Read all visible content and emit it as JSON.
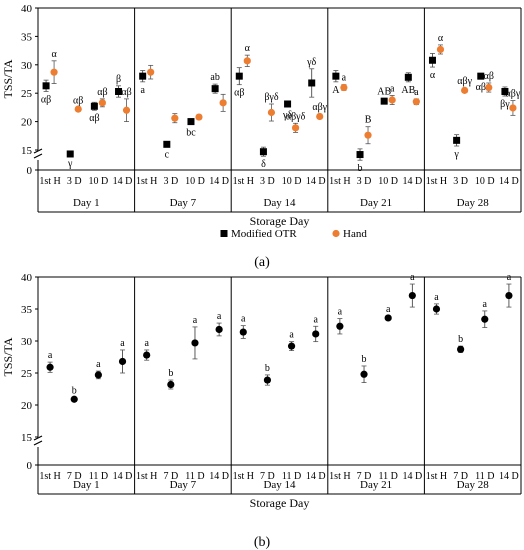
{
  "figure": {
    "panels": [
      "(a)",
      "(b)"
    ]
  },
  "chart_data": [
    {
      "type": "scatter",
      "panel_label": "(a)",
      "ylabel": "TSS/TA",
      "xlabel": "Storage Day",
      "ylim": [
        0,
        40
      ],
      "yticks": [
        "0",
        "15",
        "20",
        "25",
        "30",
        "35",
        "40"
      ],
      "axis_break": true,
      "groups": [
        "Day 1",
        "Day 7",
        "Day 14",
        "Day 21",
        "Day 28"
      ],
      "x_labels": [
        "1st H",
        "3 D",
        "10 D",
        "14 D"
      ],
      "legend": [
        "Modified OTR",
        "Hand"
      ],
      "colors": {
        "Modified OTR": "#000000",
        "Hand": "#ed7d31"
      },
      "series": [
        {
          "name": "Modified OTR",
          "marker": "square",
          "values": [
            [
              26.3,
              14.3,
              22.7,
              25.3
            ],
            [
              28.0,
              16.0,
              20.0,
              25.8
            ],
            [
              28.0,
              14.7,
              23.1,
              26.8
            ],
            [
              28.0,
              14.2,
              23.6,
              27.8
            ],
            [
              30.8,
              16.7,
              28.0,
              25.3
            ]
          ],
          "errors": [
            [
              1.0,
              0.3,
              0.7,
              1.0
            ],
            [
              1.0,
              0.4,
              0.5,
              0.8
            ],
            [
              1.5,
              0.8,
              0.5,
              2.5
            ],
            [
              1.0,
              1.0,
              0.5,
              0.8
            ],
            [
              1.2,
              1.0,
              0.5,
              0.8
            ]
          ],
          "annotations": [
            [
              "αβ",
              "γ",
              "αβ",
              "β"
            ],
            [
              "a",
              "c",
              "bc",
              "ab"
            ],
            [
              "αβ",
              "δ",
              "γδ",
              "γδ"
            ],
            [
              "A",
              "b",
              "AB",
              "AB"
            ],
            [
              "α",
              "γ",
              "αβ",
              "βγ"
            ]
          ]
        },
        {
          "name": "Hand",
          "marker": "circle",
          "values": [
            [
              28.7,
              22.2,
              23.3,
              22.0
            ],
            [
              28.7,
              20.6,
              20.8,
              23.3
            ],
            [
              30.7,
              21.6,
              18.9,
              20.9
            ],
            [
              26.0,
              17.6,
              23.8,
              23.5
            ],
            [
              32.7,
              25.5,
              26.0,
              22.4
            ]
          ],
          "errors": [
            [
              2.0,
              0.3,
              0.7,
              2.0
            ],
            [
              1.2,
              0.8,
              0.4,
              1.5
            ],
            [
              1.0,
              1.5,
              0.8,
              0.4
            ],
            [
              0.5,
              1.5,
              0.8,
              0.5
            ],
            [
              0.8,
              0.4,
              0.8,
              1.3
            ]
          ],
          "annotations": [
            [
              "α",
              "αβ",
              "αβ",
              "αβ"
            ],
            [
              "",
              "",
              "",
              ""
            ],
            [
              "α",
              "βγδ",
              "αβγδ",
              "αβγ"
            ],
            [
              "a",
              "B",
              "a",
              "a"
            ],
            [
              "α",
              "αβγ",
              "αβ",
              "αβγ"
            ]
          ]
        }
      ]
    },
    {
      "type": "scatter",
      "panel_label": "(b)",
      "ylabel": "TSS/TA",
      "xlabel": "Storage Day",
      "ylim": [
        0,
        40
      ],
      "yticks": [
        "0",
        "15",
        "20",
        "25",
        "30",
        "35",
        "40"
      ],
      "axis_break": true,
      "groups": [
        "Day 1",
        "Day 7",
        "Day 14",
        "Day 21",
        "Day 28"
      ],
      "x_labels": [
        "1st H",
        "7 D",
        "11 D",
        "14 D"
      ],
      "series": [
        {
          "marker": "circle",
          "values": [
            [
              25.9,
              20.9,
              24.7,
              26.8
            ],
            [
              27.8,
              23.2,
              29.7,
              31.8
            ],
            [
              31.4,
              23.9,
              29.2,
              31.1
            ],
            [
              32.3,
              24.8,
              33.6,
              37.1
            ],
            [
              35.0,
              28.7,
              33.4,
              37.1
            ]
          ],
          "errors": [
            [
              0.8,
              0.3,
              0.6,
              1.8
            ],
            [
              0.8,
              0.7,
              2.5,
              1.0
            ],
            [
              1.0,
              0.8,
              0.7,
              1.2
            ],
            [
              1.2,
              1.3,
              0.3,
              1.8
            ],
            [
              0.8,
              0.5,
              1.3,
              1.8
            ]
          ],
          "annotations": [
            [
              "a",
              "b",
              "a",
              "a"
            ],
            [
              "a",
              "b",
              "a",
              "a"
            ],
            [
              "a",
              "b",
              "a",
              "a"
            ],
            [
              "a",
              "b",
              "a",
              "a"
            ],
            [
              "a",
              "b",
              "a",
              "a"
            ]
          ]
        }
      ]
    }
  ]
}
